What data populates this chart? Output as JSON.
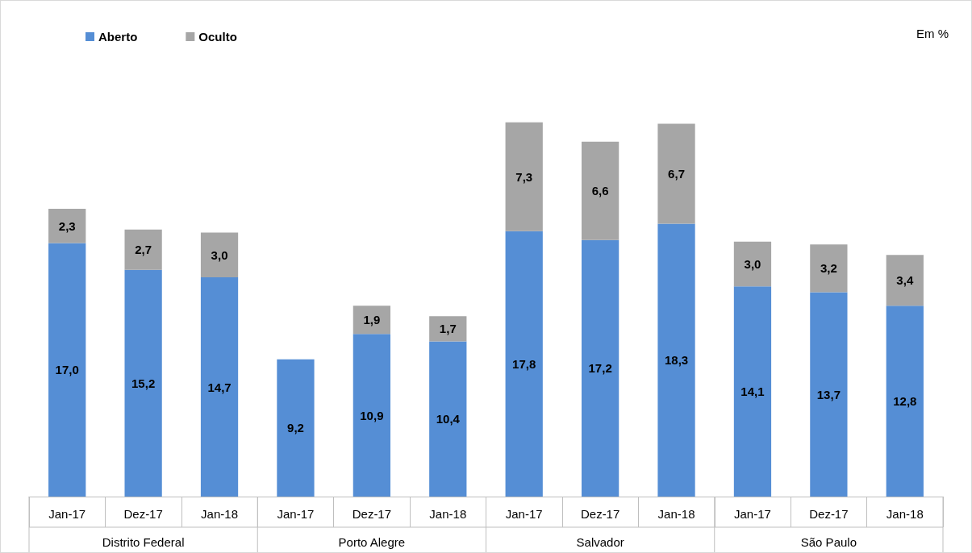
{
  "chart_data": {
    "type": "bar",
    "stacked": true,
    "categories": [
      "Jan-17",
      "Dez-17",
      "Jan-18",
      "Jan-17",
      "Dez-17",
      "Jan-18",
      "Jan-17",
      "Dez-17",
      "Jan-18",
      "Jan-17",
      "Dez-17",
      "Jan-18"
    ],
    "series": [
      {
        "name": "Aberto",
        "color": "#558ed5",
        "values": [
          17.0,
          15.2,
          14.7,
          9.2,
          10.9,
          10.4,
          17.8,
          17.2,
          18.3,
          14.1,
          13.7,
          12.8
        ],
        "value_labels": [
          "17,0",
          "15,2",
          "14,7",
          "9,2",
          "10,9",
          "10,4",
          "17,8",
          "17,2",
          "18,3",
          "14,1",
          "13,7",
          "12,8"
        ]
      },
      {
        "name": "Oculto",
        "color": "#a6a6a6",
        "values": [
          2.3,
          2.7,
          3.0,
          null,
          1.9,
          1.7,
          7.3,
          6.6,
          6.7,
          3.0,
          3.2,
          3.4
        ],
        "value_labels": [
          "2,3",
          "2,7",
          "3,0",
          null,
          "1,9",
          "1,7",
          "7,3",
          "6,6",
          "6,7",
          "3,0",
          "3,2",
          "3,4"
        ]
      }
    ],
    "legend": "top left",
    "annotations": [
      "Em %",
      "Distrito Federal",
      "Porto Alegre",
      "Salvador",
      "São Paulo"
    ]
  }
}
